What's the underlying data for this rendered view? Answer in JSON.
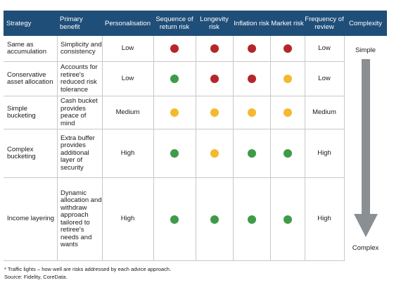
{
  "header": {
    "strategy": "Strategy",
    "primary_benefit": "Primary benefit",
    "personalisation": "Personalisation",
    "sequence": "Sequence of return risk",
    "longevity": "Longevity risk",
    "inflation": "Inflation risk",
    "market": "Market risk",
    "frequency": "Frequency of review",
    "complexity": "Complexity"
  },
  "rows": [
    {
      "strategy": "Same as accumulation",
      "benefit": "Simplicity and consistency",
      "personalisation": "Low",
      "sequence": "red",
      "longevity": "red",
      "inflation": "red",
      "market": "red",
      "frequency": "Low"
    },
    {
      "strategy": "Conservative asset allocation",
      "benefit": "Accounts for retiree's reduced risk tolerance",
      "personalisation": "Low",
      "sequence": "green",
      "longevity": "red",
      "inflation": "red",
      "market": "amber",
      "frequency": "Low"
    },
    {
      "strategy": "Simple bucketing",
      "benefit": "Cash bucket provides peace of mind",
      "personalisation": "Medium",
      "sequence": "amber",
      "longevity": "amber",
      "inflation": "amber",
      "market": "amber",
      "frequency": "Medium"
    },
    {
      "strategy": "Complex bucketing",
      "benefit": "Extra buffer provides additional layer of security",
      "personalisation": "High",
      "sequence": "green",
      "longevity": "amber",
      "inflation": "green",
      "market": "green",
      "frequency": "High"
    },
    {
      "strategy": "Income layering",
      "benefit": "Dynamic allocation and withdraw approach tailored to retiree's needs and wants",
      "personalisation": "High",
      "sequence": "green",
      "longevity": "green",
      "inflation": "green",
      "market": "green",
      "frequency": "High"
    }
  ],
  "complexity": {
    "top": "Simple",
    "bottom": "Complex"
  },
  "colors": {
    "red": "#b5262b",
    "green": "#3f9b48",
    "amber": "#f4b92e",
    "header": "#1f4e79",
    "arrow": "#8a8f93"
  },
  "footnote": "* Traffic lights – how well are risks addressed by each advice approach.",
  "source": "Source: Fidelity, CoreData."
}
